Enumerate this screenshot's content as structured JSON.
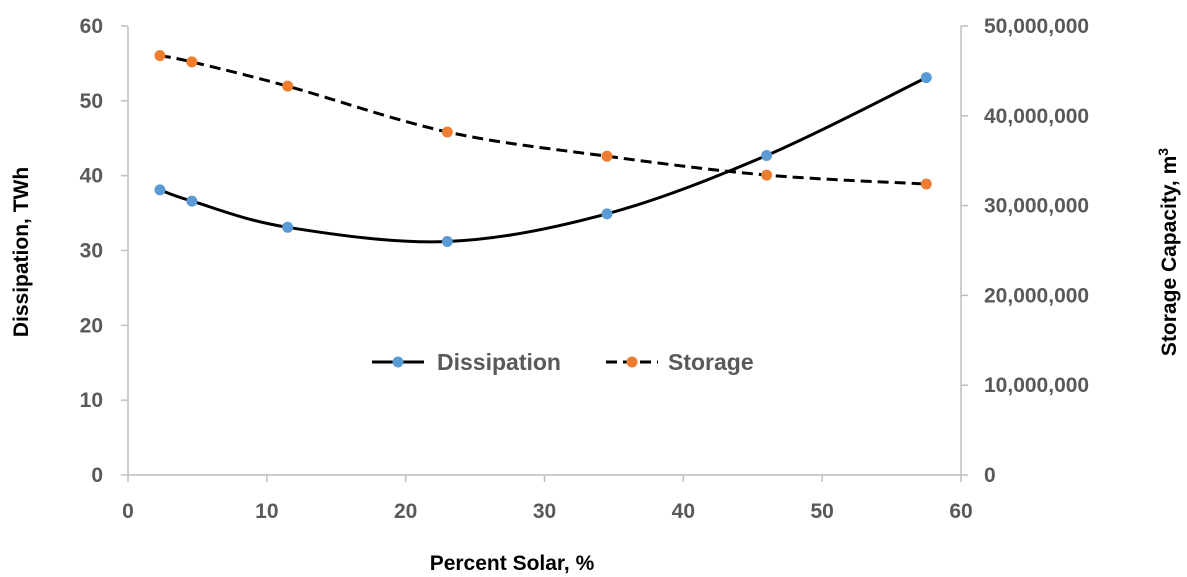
{
  "chart_data": {
    "type": "line",
    "title": "",
    "xlabel": "Percent Solar, %",
    "ylabel_left": "Dissipation, TWh",
    "ylabel_right_base": "Storage Capacity, m",
    "ylabel_right_sup": "3",
    "xlim": [
      0,
      60
    ],
    "ylim_left": [
      0,
      60
    ],
    "ylim_right": [
      0,
      50000000
    ],
    "x_ticks": [
      "0",
      "10",
      "20",
      "30",
      "40",
      "50",
      "60"
    ],
    "y_left_ticks": [
      "0",
      "10",
      "20",
      "30",
      "40",
      "50",
      "60"
    ],
    "y_right_ticks": [
      "0",
      "10,000,000",
      "20,000,000",
      "30,000,000",
      "40,000,000",
      "50,000,000"
    ],
    "grid": false,
    "legend_placement": "center",
    "series": [
      {
        "name": "Dissipation",
        "axis": "left",
        "line_style": "solid",
        "smooth": true,
        "line_color": "#000000",
        "marker_color": "#5B9BD5",
        "x": [
          2.3,
          4.6,
          11.5,
          23,
          34.5,
          46,
          57.5
        ],
        "y": [
          38.1,
          36.6,
          33.1,
          31.2,
          34.9,
          42.7,
          53.1
        ]
      },
      {
        "name": "Storage",
        "axis": "right",
        "line_style": "dashed",
        "smooth": true,
        "line_color": "#000000",
        "marker_color": "#ED7D31",
        "x": [
          2.3,
          4.6,
          11.5,
          23,
          34.5,
          46,
          57.5
        ],
        "y": [
          46700000,
          46000000,
          43300000,
          38200000,
          35500000,
          33400000,
          32400000
        ]
      }
    ]
  }
}
